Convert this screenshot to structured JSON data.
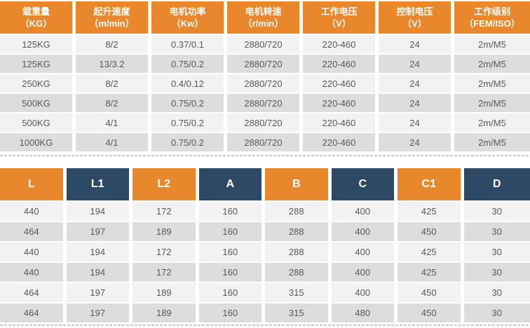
{
  "colors": {
    "header_orange": "#e8872b",
    "header_navy": "#2d4965",
    "row_light": "#f2f2f3",
    "row_dark": "#dddddd",
    "cell_text": "#58585a",
    "divider": "#c9c9c9"
  },
  "chart_data": [
    {
      "type": "table",
      "name": "hoist-performance-specs",
      "columns": [
        {
          "label": "载重量",
          "unit": "（KG）"
        },
        {
          "label": "起升速度",
          "unit": "（m/min）"
        },
        {
          "label": "电机功率",
          "unit": "（Kw）"
        },
        {
          "label": "电机转速",
          "unit": "（r/min）"
        },
        {
          "label": "工作电压",
          "unit": "（V）"
        },
        {
          "label": "控制电压",
          "unit": "（V）"
        },
        {
          "label": "工作级别",
          "unit": "（FEM/ISO）"
        }
      ],
      "rows": [
        [
          "125KG",
          "8/2",
          "0.37/0.1",
          "2880/720",
          "220-460",
          "24",
          "2m/M5"
        ],
        [
          "125KG",
          "13/3.2",
          "0.75/0.2",
          "2880/720",
          "220-460",
          "24",
          "2m/M5"
        ],
        [
          "250KG",
          "8/2",
          "0.4/0.12",
          "2880/720",
          "220-460",
          "24",
          "2m/M5"
        ],
        [
          "500KG",
          "8/2",
          "0.75/0.2",
          "2880/720",
          "220-460",
          "24",
          "2m/M5"
        ],
        [
          "500KG",
          "4/1",
          "0.75/0.2",
          "2880/720",
          "220-460",
          "24",
          "2m/M5"
        ],
        [
          "1000KG",
          "4/1",
          "0.75/0.2",
          "2880/720",
          "220-460",
          "24",
          "2m/M5"
        ]
      ]
    },
    {
      "type": "table",
      "name": "hoist-dimensions",
      "columns": [
        "L",
        "L1",
        "L2",
        "A",
        "B",
        "C",
        "C1",
        "D"
      ],
      "rows": [
        [
          "440",
          "194",
          "172",
          "160",
          "288",
          "400",
          "425",
          "30"
        ],
        [
          "464",
          "197",
          "189",
          "160",
          "288",
          "400",
          "450",
          "30"
        ],
        [
          "440",
          "194",
          "172",
          "160",
          "288",
          "400",
          "425",
          "30"
        ],
        [
          "440",
          "194",
          "172",
          "160",
          "288",
          "400",
          "425",
          "30"
        ],
        [
          "464",
          "197",
          "189",
          "160",
          "315",
          "400",
          "450",
          "30"
        ],
        [
          "464",
          "197",
          "189",
          "160",
          "315",
          "480",
          "450",
          "30"
        ]
      ]
    }
  ]
}
